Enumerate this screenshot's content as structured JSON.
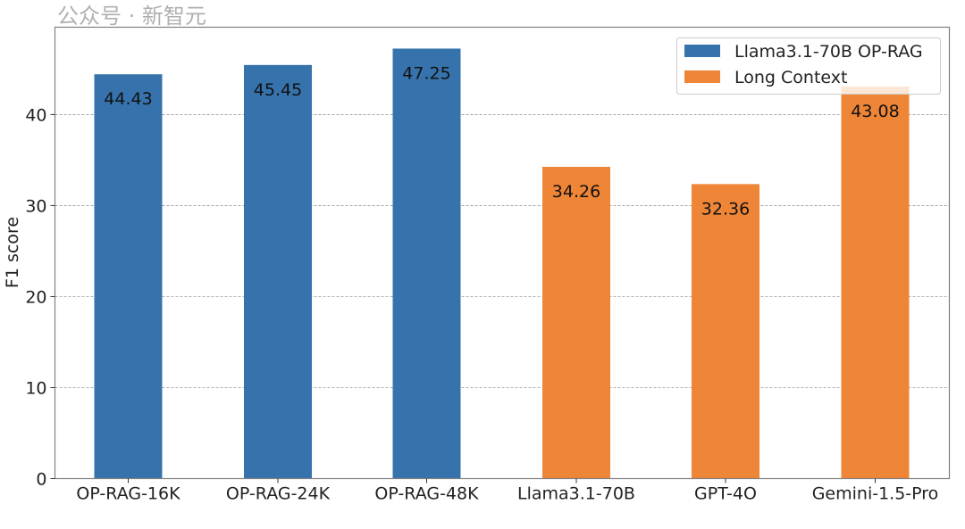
{
  "chart_data": {
    "type": "bar",
    "title": "",
    "xlabel": "",
    "ylabel": "F1 score",
    "ylim": [
      0,
      49.6
    ],
    "yticks": [
      0,
      10,
      20,
      30,
      40
    ],
    "grid": "horizontal dashed",
    "legend_position": "top-right",
    "categories": [
      "OP-RAG-16K",
      "OP-RAG-24K",
      "OP-RAG-48K",
      "Llama3.1-70B",
      "GPT-4O",
      "Gemini-1.5-Pro"
    ],
    "series": [
      {
        "name": "Llama3.1-70B OP-RAG",
        "color": "#3673ac",
        "values": [
          44.43,
          45.45,
          47.25,
          null,
          null,
          null
        ]
      },
      {
        "name": "Long Context",
        "color": "#ef8536",
        "values": [
          null,
          null,
          null,
          34.26,
          32.36,
          43.08
        ]
      }
    ],
    "data_labels": [
      "44.43",
      "45.45",
      "47.25",
      "34.26",
      "32.36",
      "43.08"
    ]
  },
  "watermark": "公众号 · 新智元"
}
